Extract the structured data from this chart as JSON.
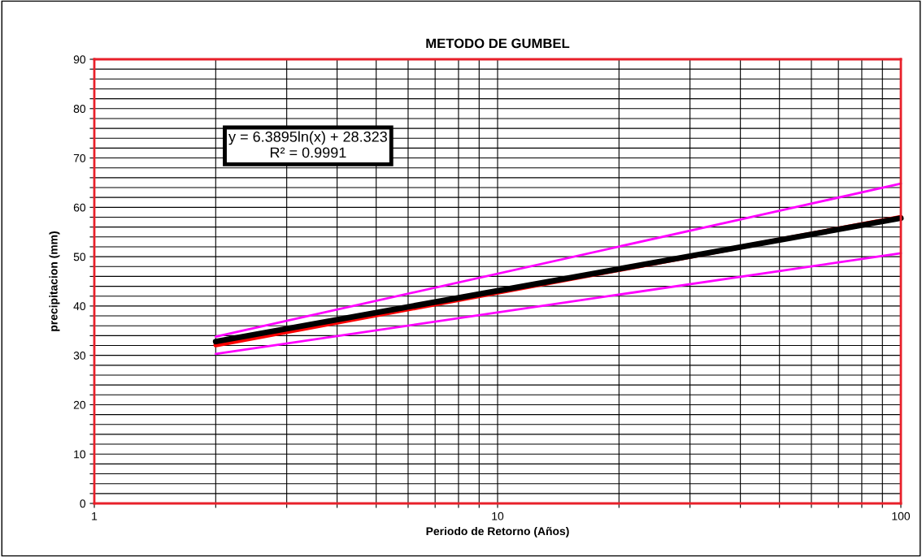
{
  "chart_data": {
    "type": "line",
    "title": "METODO DE GUMBEL",
    "xlabel": "Periodo de Retorno (Años)",
    "ylabel": "precipitacion (mm)",
    "log": "x",
    "grid": true,
    "marker": "none",
    "line_style": "solid",
    "xlim": [
      1,
      100
    ],
    "xticks": [
      1,
      {
        "value": 2,
        "label": null
      },
      {
        "value": 3,
        "label": null
      },
      {
        "value": 4,
        "label": null
      },
      {
        "value": 5,
        "label": null
      },
      {
        "value": 6,
        "label": null
      },
      {
        "value": 7,
        "label": null
      },
      {
        "value": 8,
        "label": null
      },
      {
        "value": 9,
        "label": null
      },
      10,
      {
        "value": 20,
        "label": null
      },
      {
        "value": 30,
        "label": null
      },
      {
        "value": 40,
        "label": null
      },
      {
        "value": 50,
        "label": null
      },
      {
        "value": 60,
        "label": null
      },
      {
        "value": 70,
        "label": null
      },
      {
        "value": 80,
        "label": null
      },
      {
        "value": 90,
        "label": null
      },
      100
    ],
    "ylim": [
      0,
      90
    ],
    "yticks": [
      0,
      {
        "value": 2,
        "label": null
      },
      {
        "value": 4,
        "label": null
      },
      {
        "value": 6,
        "label": null
      },
      {
        "value": 8,
        "label": null
      },
      10,
      {
        "value": 12,
        "label": null
      },
      {
        "value": 14,
        "label": null
      },
      {
        "value": 16,
        "label": null
      },
      {
        "value": 18,
        "label": null
      },
      20,
      {
        "value": 22,
        "label": null
      },
      {
        "value": 24,
        "label": null
      },
      {
        "value": 26,
        "label": null
      },
      {
        "value": 28,
        "label": null
      },
      30,
      {
        "value": 32,
        "label": null
      },
      {
        "value": 34,
        "label": null
      },
      {
        "value": 36,
        "label": null
      },
      {
        "value": 38,
        "label": null
      },
      40,
      {
        "value": 42,
        "label": null
      },
      {
        "value": 44,
        "label": null
      },
      {
        "value": 46,
        "label": null
      },
      {
        "value": 48,
        "label": null
      },
      50,
      {
        "value": 52,
        "label": null
      },
      {
        "value": 54,
        "label": null
      },
      {
        "value": 56,
        "label": null
      },
      {
        "value": 58,
        "label": null
      },
      60,
      {
        "value": 62,
        "label": null
      },
      {
        "value": 64,
        "label": null
      },
      {
        "value": 66,
        "label": null
      },
      {
        "value": 68,
        "label": null
      },
      70,
      {
        "value": 72,
        "label": null
      },
      {
        "value": 74,
        "label": null
      },
      {
        "value": 76,
        "label": null
      },
      {
        "value": 78,
        "label": null
      },
      80,
      {
        "value": 82,
        "label": null
      },
      {
        "value": 84,
        "label": null
      },
      {
        "value": 86,
        "label": null
      },
      {
        "value": 88,
        "label": null
      },
      90
    ],
    "x": [
      2,
      100
    ],
    "series": [
      {
        "color": "#ff00ff",
        "values": [
          33.8,
          64.8
        ]
      },
      {
        "color": "#ff00ff",
        "values": [
          30.3,
          50.7
        ]
      },
      {
        "color": "#ff0000",
        "values": [
          32.1,
          58.0
        ]
      },
      {
        "color": "#000000",
        "values": [
          32.8,
          57.8
        ]
      }
    ],
    "annotations": [
      "y = 6.3895ln(x) + 28.323\nR² = 0.9991"
    ]
  }
}
